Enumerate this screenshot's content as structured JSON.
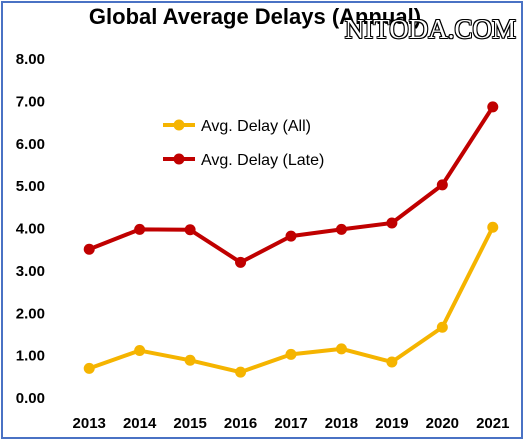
{
  "chart_data": {
    "type": "line",
    "title": "Global Average Delays (Annual)",
    "categories": [
      "2013",
      "2014",
      "2015",
      "2016",
      "2017",
      "2018",
      "2019",
      "2020",
      "2021"
    ],
    "ylim": [
      0,
      8
    ],
    "yticks": [
      "0.00",
      "1.00",
      "2.00",
      "3.00",
      "4.00",
      "5.00",
      "6.00",
      "7.00",
      "8.00"
    ],
    "grid": false,
    "legend_position": "top-left inside plot",
    "series": [
      {
        "name": "Avg. Delay (All)",
        "color": "#f5b400",
        "values": [
          0.7,
          1.12,
          0.89,
          0.61,
          1.03,
          1.16,
          0.85,
          1.67,
          4.03
        ]
      },
      {
        "name": "Avg. Delay (Late)",
        "color": "#c00000",
        "values": [
          3.51,
          3.98,
          3.97,
          3.2,
          3.82,
          3.98,
          4.13,
          5.03,
          6.87
        ]
      }
    ]
  },
  "watermark": "NITODA.COM"
}
